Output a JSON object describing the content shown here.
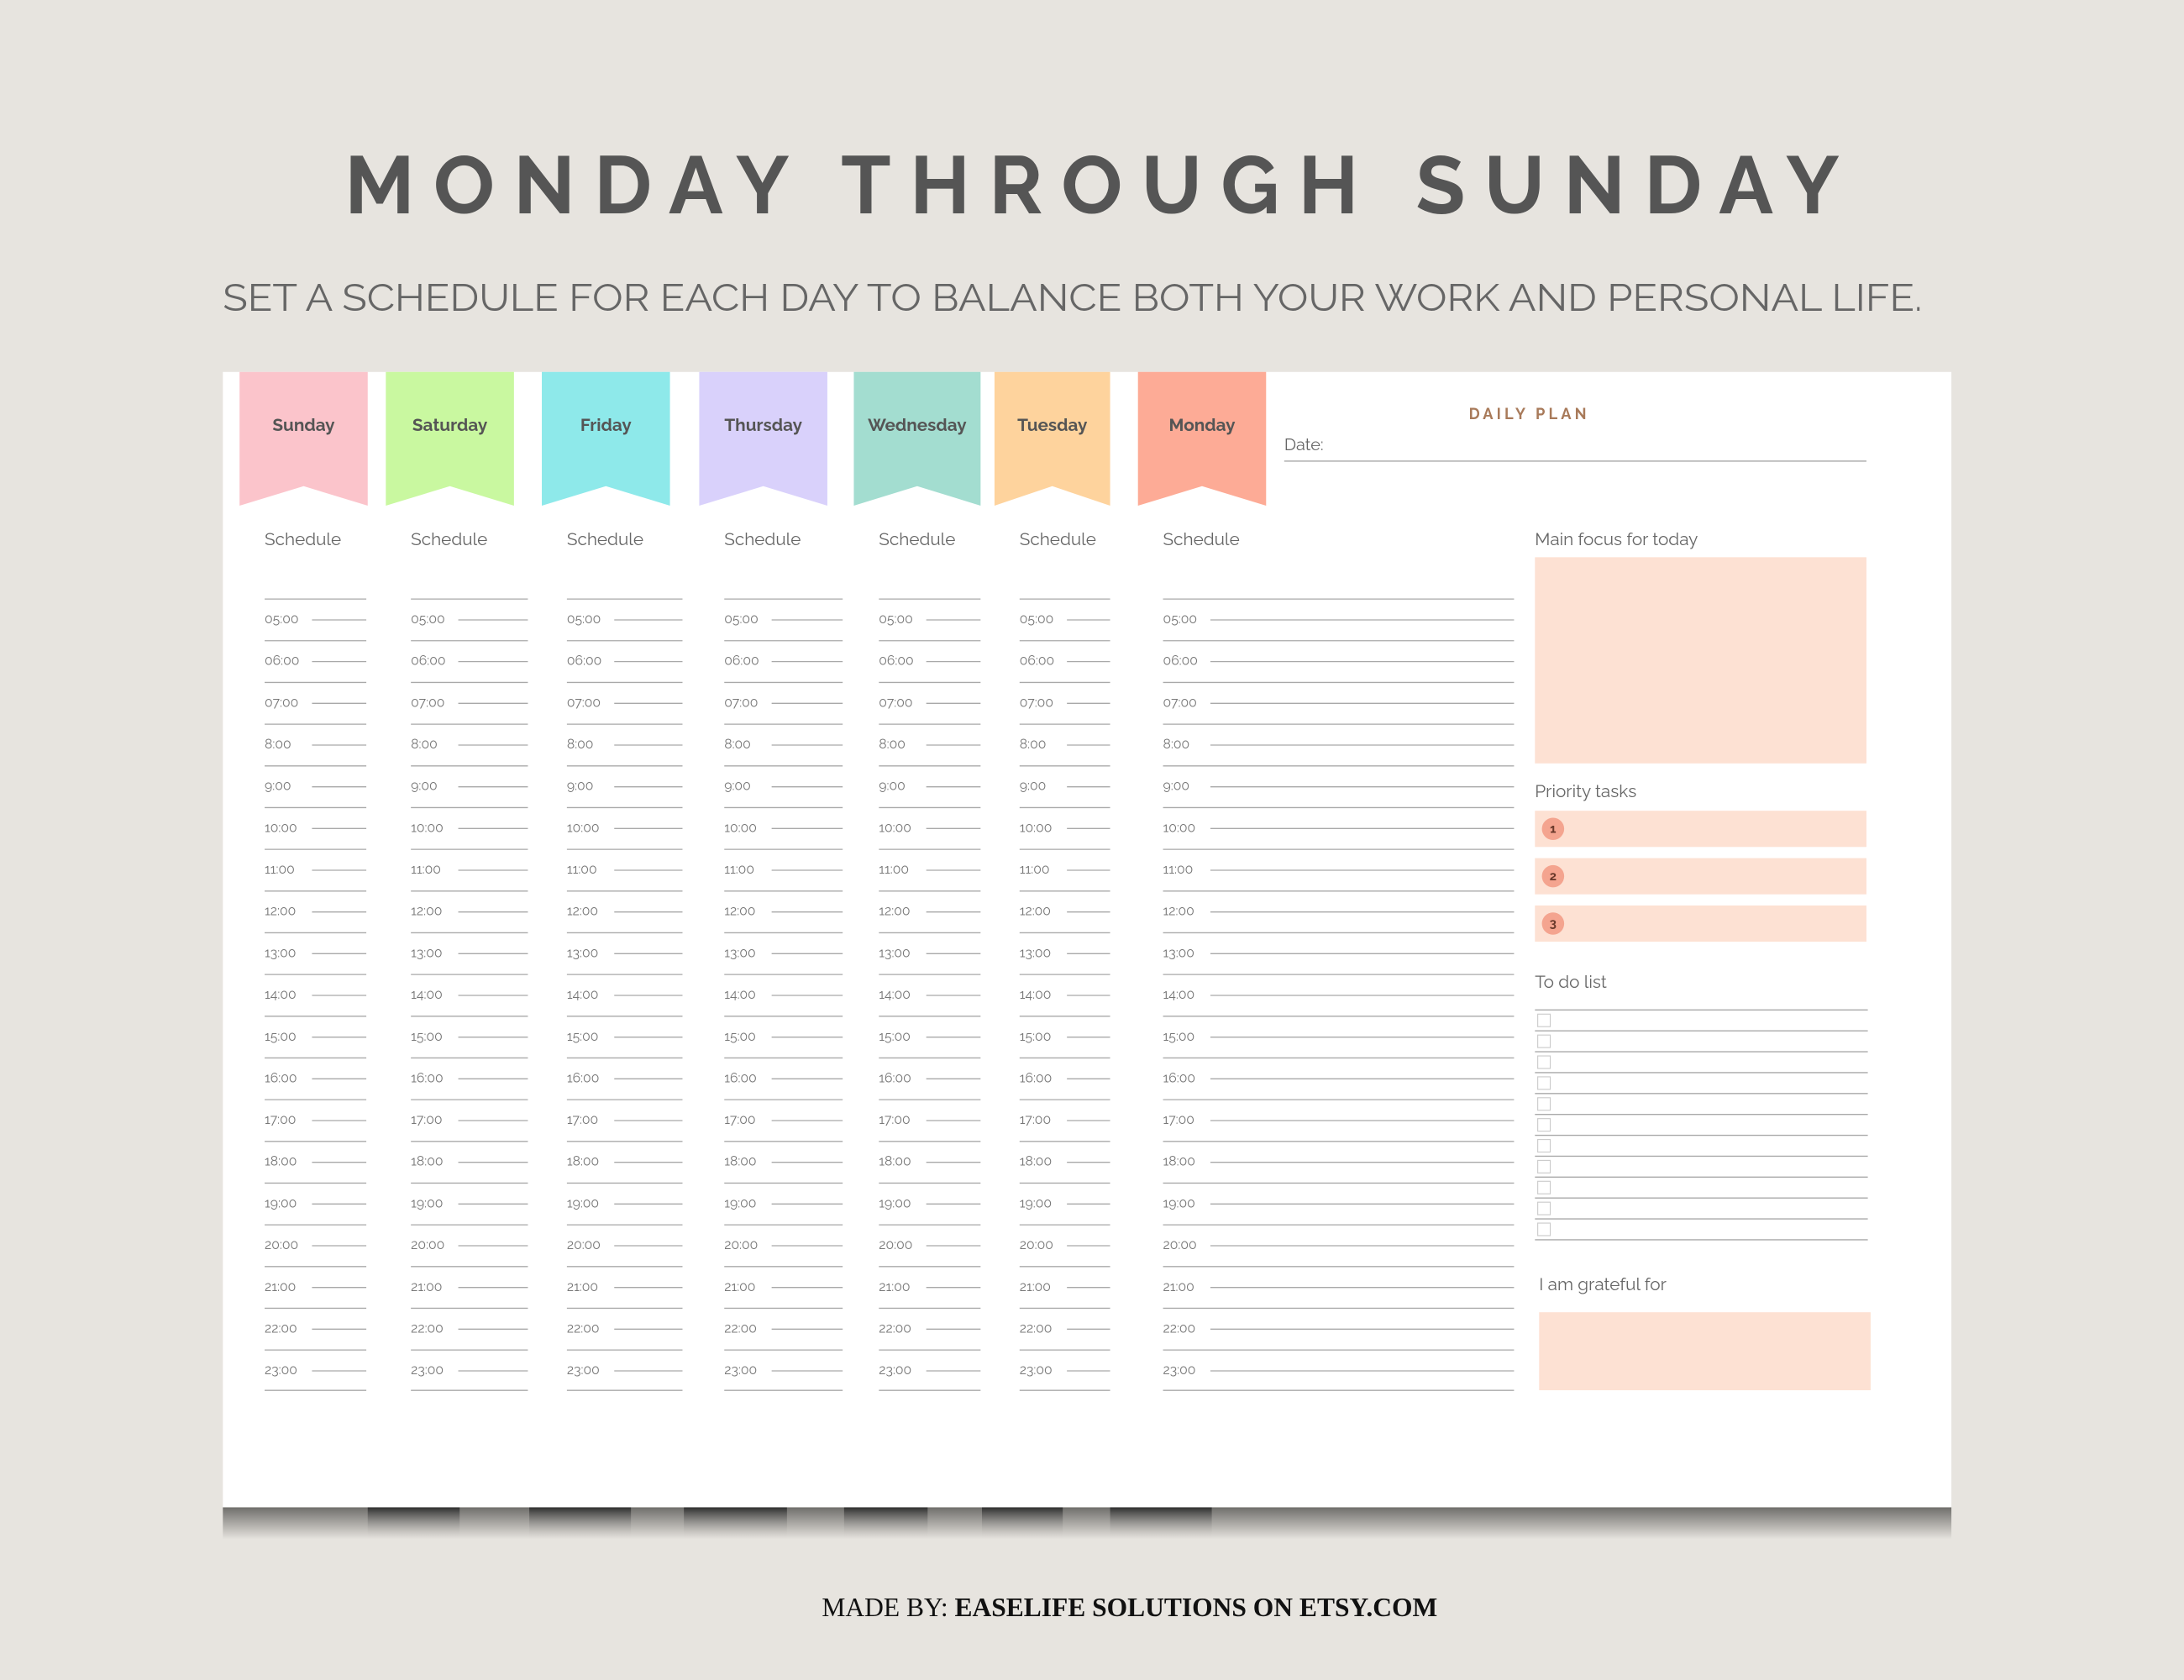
{
  "header": {
    "title": "MONDAY THROUGH SUNDAY",
    "subtitle": "SET A SCHEDULE FOR EACH DAY TO BALANCE BOTH YOUR WORK AND PERSONAL LIFE."
  },
  "planner": {
    "days": [
      {
        "name": "Sunday",
        "color": "#fbc4cb"
      },
      {
        "name": "Saturday",
        "color": "#c9f8a0"
      },
      {
        "name": "Friday",
        "color": "#8ee9ea"
      },
      {
        "name": "Thursday",
        "color": "#d9d1fb"
      },
      {
        "name": "Wednesday",
        "color": "#a3ddd0"
      },
      {
        "name": "Tuesday",
        "color": "#fed39d"
      },
      {
        "name": "Monday",
        "color": "#fdab96"
      }
    ],
    "schedule_label": "Schedule",
    "times": [
      "05:00",
      "06:00",
      "07:00",
      "8:00",
      "9:00",
      "10:00",
      "11:00",
      "12:00",
      "13:00",
      "14:00",
      "15:00",
      "16:00",
      "17:00",
      "18:00",
      "19:00",
      "20:00",
      "21:00",
      "22:00",
      "23:00"
    ]
  },
  "daily_plan": {
    "title": "DAILY PLAN",
    "date_label": "Date:",
    "main_focus": "Main focus for today",
    "priority_label": "Priority tasks",
    "priorities": [
      1,
      2,
      3
    ],
    "todo_label": "To do list",
    "grateful_label": "I am grateful for"
  },
  "footer": {
    "prefix": "MADE BY:",
    "name": "EASELIFE SOLUTIONS ON ETSY.COM"
  }
}
